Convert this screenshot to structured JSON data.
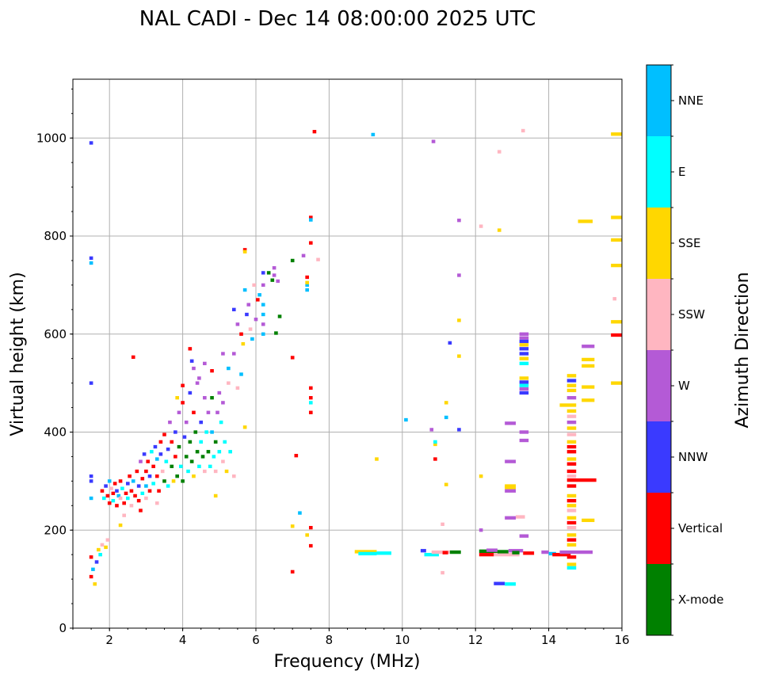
{
  "chart_data": {
    "type": "scatter",
    "title": "NAL CADI - Dec 14 08:00:00 2025 UTC",
    "xlabel": "Frequency (MHz)",
    "ylabel": "Virtual height (km)",
    "xlim": [
      1,
      16
    ],
    "ylim": [
      0,
      1120
    ],
    "xticks": [
      2,
      4,
      6,
      8,
      10,
      12,
      14,
      16
    ],
    "yticks": [
      0,
      200,
      400,
      600,
      800,
      1000
    ],
    "grid": true,
    "colorbar": {
      "label": "Azimuth Direction",
      "categories": [
        "X-mode",
        "Vertical",
        "NNW",
        "W",
        "SSW",
        "SSE",
        "E",
        "NNE"
      ],
      "colors": [
        "#008000",
        "#ff0000",
        "#3a3aff",
        "#b45ad6",
        "#ffb6c1",
        "#ffd700",
        "#00ffff",
        "#00bfff"
      ]
    },
    "points_note": "[frequency MHz, virtual height km, category index]",
    "points": [
      [
        1.5,
        990,
        2
      ],
      [
        1.5,
        755,
        2
      ],
      [
        1.5,
        745,
        7
      ],
      [
        1.5,
        500,
        2
      ],
      [
        1.5,
        310,
        2
      ],
      [
        1.5,
        300,
        2
      ],
      [
        1.5,
        265,
        7
      ],
      [
        1.5,
        145,
        1
      ],
      [
        1.5,
        105,
        1
      ],
      [
        1.55,
        120,
        7
      ],
      [
        1.6,
        90,
        5
      ],
      [
        1.7,
        160,
        5
      ],
      [
        1.8,
        170,
        4
      ],
      [
        1.9,
        165,
        5
      ],
      [
        1.95,
        180,
        4
      ],
      [
        1.75,
        150,
        6
      ],
      [
        1.65,
        135,
        2
      ],
      [
        7.6,
        1013,
        1
      ],
      [
        9.2,
        1007,
        7
      ],
      [
        10.85,
        993,
        3
      ],
      [
        12.65,
        972,
        4
      ],
      [
        13.3,
        1015,
        4
      ],
      [
        7.5,
        838,
        1
      ],
      [
        7.5,
        833,
        7
      ],
      [
        11.55,
        832,
        3
      ],
      [
        12.15,
        820,
        4
      ],
      [
        12.65,
        812,
        5
      ],
      [
        15.8,
        672,
        4
      ],
      [
        11.55,
        720,
        3
      ],
      [
        11.55,
        628,
        5
      ],
      [
        11.55,
        555,
        5
      ],
      [
        11.3,
        582,
        2
      ],
      [
        11.2,
        460,
        5
      ],
      [
        11.2,
        430,
        7
      ],
      [
        11.55,
        405,
        2
      ],
      [
        10.1,
        425,
        7
      ],
      [
        10.8,
        405,
        3
      ],
      [
        10.9,
        375,
        5
      ],
      [
        10.9,
        380,
        6
      ],
      [
        10.9,
        345,
        1
      ],
      [
        11.2,
        293,
        5
      ],
      [
        9.3,
        345,
        5
      ],
      [
        12.15,
        310,
        5
      ],
      [
        12.15,
        200,
        3
      ],
      [
        11.1,
        212,
        4
      ],
      [
        11.1,
        113,
        4
      ],
      [
        7.0,
        552,
        1
      ],
      [
        7.0,
        115,
        1
      ],
      [
        7.1,
        352,
        1
      ],
      [
        7.2,
        235,
        7
      ],
      [
        7.0,
        208,
        5
      ],
      [
        7.5,
        205,
        1
      ],
      [
        7.5,
        168,
        1
      ],
      [
        7.4,
        190,
        5
      ],
      [
        7.5,
        490,
        1
      ],
      [
        7.5,
        470,
        1
      ],
      [
        7.5,
        460,
        6
      ],
      [
        7.5,
        440,
        1
      ],
      [
        7.4,
        700,
        7
      ],
      [
        7.4,
        690,
        7
      ],
      [
        7.5,
        786,
        1
      ],
      [
        7.3,
        760,
        3
      ],
      [
        7.0,
        750,
        0
      ],
      [
        7.7,
        752,
        4
      ],
      [
        7.4,
        716,
        1
      ],
      [
        7.4,
        705,
        5
      ],
      [
        1.8,
        280,
        1
      ],
      [
        1.85,
        265,
        6
      ],
      [
        1.9,
        290,
        2
      ],
      [
        1.95,
        270,
        1
      ],
      [
        2.0,
        300,
        7
      ],
      [
        2.0,
        255,
        1
      ],
      [
        2.05,
        285,
        4
      ],
      [
        2.1,
        275,
        1
      ],
      [
        2.1,
        260,
        6
      ],
      [
        2.15,
        295,
        1
      ],
      [
        2.2,
        280,
        2
      ],
      [
        2.2,
        250,
        1
      ],
      [
        2.25,
        270,
        7
      ],
      [
        2.3,
        300,
        1
      ],
      [
        2.3,
        265,
        4
      ],
      [
        2.35,
        285,
        6
      ],
      [
        2.4,
        255,
        1
      ],
      [
        2.45,
        275,
        1
      ],
      [
        2.5,
        295,
        2
      ],
      [
        2.5,
        265,
        6
      ],
      [
        2.55,
        310,
        1
      ],
      [
        2.6,
        280,
        1
      ],
      [
        2.6,
        250,
        4
      ],
      [
        2.65,
        300,
        7
      ],
      [
        2.7,
        270,
        1
      ],
      [
        2.75,
        320,
        1
      ],
      [
        2.8,
        290,
        2
      ],
      [
        2.8,
        260,
        1
      ],
      [
        2.85,
        340,
        3
      ],
      [
        2.9,
        305,
        1
      ],
      [
        2.9,
        275,
        6
      ],
      [
        2.95,
        355,
        2
      ],
      [
        3.0,
        320,
        1
      ],
      [
        3.0,
        290,
        7
      ],
      [
        3.0,
        265,
        4
      ],
      [
        3.05,
        340,
        1
      ],
      [
        3.1,
        310,
        2
      ],
      [
        3.1,
        280,
        1
      ],
      [
        3.15,
        360,
        6
      ],
      [
        3.2,
        330,
        1
      ],
      [
        3.2,
        295,
        6
      ],
      [
        3.25,
        370,
        2
      ],
      [
        3.3,
        345,
        7
      ],
      [
        3.3,
        310,
        1
      ],
      [
        3.35,
        280,
        1
      ],
      [
        3.4,
        380,
        1
      ],
      [
        3.4,
        355,
        2
      ],
      [
        3.45,
        320,
        4
      ],
      [
        3.5,
        300,
        0
      ],
      [
        3.5,
        395,
        1
      ],
      [
        3.55,
        340,
        6
      ],
      [
        3.6,
        365,
        2
      ],
      [
        3.6,
        290,
        6
      ],
      [
        3.65,
        420,
        3
      ],
      [
        3.7,
        330,
        0
      ],
      [
        3.7,
        380,
        1
      ],
      [
        3.75,
        300,
        5
      ],
      [
        3.8,
        350,
        1
      ],
      [
        3.8,
        400,
        2
      ],
      [
        3.85,
        310,
        0
      ],
      [
        3.9,
        440,
        3
      ],
      [
        3.9,
        370,
        0
      ],
      [
        3.95,
        330,
        6
      ],
      [
        4.0,
        460,
        1
      ],
      [
        4.0,
        300,
        0
      ],
      [
        4.05,
        390,
        2
      ],
      [
        4.1,
        350,
        0
      ],
      [
        4.1,
        420,
        3
      ],
      [
        4.15,
        320,
        6
      ],
      [
        4.2,
        480,
        2
      ],
      [
        4.2,
        380,
        0
      ],
      [
        4.25,
        340,
        0
      ],
      [
        4.3,
        440,
        1
      ],
      [
        4.3,
        310,
        5
      ],
      [
        4.35,
        400,
        0
      ],
      [
        4.4,
        360,
        0
      ],
      [
        4.4,
        500,
        3
      ],
      [
        4.45,
        330,
        6
      ],
      [
        4.5,
        420,
        2
      ],
      [
        4.5,
        380,
        6
      ],
      [
        4.55,
        350,
        0
      ],
      [
        4.6,
        470,
        3
      ],
      [
        4.6,
        320,
        4
      ],
      [
        4.65,
        400,
        6
      ],
      [
        4.7,
        440,
        3
      ],
      [
        4.7,
        360,
        0
      ],
      [
        4.75,
        330,
        6
      ],
      [
        4.8,
        470,
        0
      ],
      [
        4.8,
        400,
        7
      ],
      [
        4.85,
        350,
        6
      ],
      [
        4.9,
        380,
        0
      ],
      [
        4.9,
        320,
        4
      ],
      [
        4.95,
        440,
        3
      ],
      [
        5.0,
        360,
        6
      ],
      [
        5.0,
        480,
        3
      ],
      [
        5.05,
        420,
        6
      ],
      [
        5.1,
        340,
        4
      ],
      [
        5.1,
        460,
        3
      ],
      [
        5.15,
        380,
        6
      ],
      [
        5.2,
        320,
        5
      ],
      [
        5.25,
        500,
        4
      ],
      [
        5.3,
        360,
        6
      ],
      [
        5.4,
        310,
        4
      ],
      [
        2.65,
        553,
        1
      ],
      [
        4.2,
        570,
        1
      ],
      [
        4.25,
        545,
        2
      ],
      [
        4.3,
        530,
        3
      ],
      [
        4.0,
        495,
        1
      ],
      [
        3.85,
        470,
        5
      ],
      [
        4.45,
        510,
        3
      ],
      [
        4.6,
        540,
        3
      ],
      [
        4.8,
        525,
        1
      ],
      [
        5.1,
        560,
        3
      ],
      [
        5.25,
        530,
        7
      ],
      [
        5.5,
        490,
        4
      ],
      [
        5.7,
        410,
        5
      ],
      [
        4.9,
        270,
        5
      ],
      [
        2.3,
        210,
        5
      ],
      [
        2.4,
        230,
        4
      ],
      [
        2.85,
        240,
        1
      ],
      [
        3.3,
        255,
        4
      ],
      [
        5.4,
        650,
        2
      ],
      [
        5.5,
        620,
        3
      ],
      [
        5.6,
        600,
        1
      ],
      [
        5.7,
        690,
        7
      ],
      [
        5.75,
        640,
        2
      ],
      [
        5.8,
        660,
        3
      ],
      [
        5.85,
        610,
        4
      ],
      [
        5.9,
        590,
        7
      ],
      [
        5.95,
        700,
        4
      ],
      [
        6.0,
        630,
        3
      ],
      [
        6.05,
        670,
        1
      ],
      [
        6.1,
        680,
        7
      ],
      [
        6.2,
        700,
        3
      ],
      [
        6.2,
        660,
        7
      ],
      [
        6.2,
        640,
        7
      ],
      [
        6.2,
        620,
        3
      ],
      [
        6.2,
        600,
        7
      ],
      [
        6.2,
        725,
        2
      ],
      [
        6.35,
        725,
        0
      ],
      [
        6.45,
        710,
        0
      ],
      [
        6.5,
        720,
        3
      ],
      [
        6.5,
        735,
        3
      ],
      [
        6.6,
        708,
        3
      ],
      [
        6.55,
        602,
        0
      ],
      [
        6.65,
        636,
        0
      ],
      [
        5.7,
        772,
        1
      ],
      [
        5.7,
        768,
        5
      ],
      [
        5.4,
        560,
        3
      ],
      [
        5.6,
        518,
        7
      ],
      [
        5.65,
        580,
        5
      ]
    ],
    "bars_note": "[freq start MHz, freq end MHz, virtual height km, category index]",
    "bars": [
      [
        15.7,
        16,
        1008,
        5
      ],
      [
        15.7,
        16,
        838,
        5
      ],
      [
        15.7,
        16,
        792,
        5
      ],
      [
        15.7,
        16,
        740,
        5
      ],
      [
        15.7,
        16,
        625,
        5
      ],
      [
        15.7,
        16,
        598,
        1
      ],
      [
        15.7,
        16,
        500,
        5
      ],
      [
        14.8,
        15.2,
        830,
        5
      ],
      [
        13.2,
        13.45,
        600,
        3
      ],
      [
        13.2,
        13.45,
        592,
        3
      ],
      [
        13.2,
        13.45,
        585,
        2
      ],
      [
        13.2,
        13.45,
        578,
        5
      ],
      [
        13.2,
        13.45,
        570,
        2
      ],
      [
        13.2,
        13.45,
        560,
        2
      ],
      [
        13.2,
        13.45,
        550,
        5
      ],
      [
        13.2,
        13.45,
        540,
        6
      ],
      [
        13.2,
        13.45,
        510,
        5
      ],
      [
        13.2,
        13.45,
        502,
        2
      ],
      [
        13.2,
        13.45,
        495,
        6
      ],
      [
        13.2,
        13.45,
        488,
        3
      ],
      [
        13.2,
        13.45,
        480,
        2
      ],
      [
        13.2,
        13.45,
        400,
        3
      ],
      [
        13.2,
        13.45,
        383,
        3
      ],
      [
        14.5,
        14.75,
        515,
        5
      ],
      [
        14.5,
        14.75,
        505,
        2
      ],
      [
        14.5,
        14.75,
        495,
        5
      ],
      [
        14.5,
        14.75,
        485,
        5
      ],
      [
        14.5,
        14.75,
        470,
        3
      ],
      [
        14.3,
        14.75,
        455,
        5
      ],
      [
        14.5,
        14.75,
        443,
        5
      ],
      [
        14.5,
        14.75,
        432,
        4
      ],
      [
        14.5,
        14.75,
        420,
        3
      ],
      [
        14.5,
        14.75,
        408,
        5
      ],
      [
        14.5,
        14.75,
        395,
        4
      ],
      [
        14.5,
        14.75,
        380,
        5
      ],
      [
        14.5,
        14.75,
        370,
        1
      ],
      [
        14.5,
        14.75,
        360,
        1
      ],
      [
        14.5,
        14.75,
        345,
        5
      ],
      [
        14.5,
        14.75,
        335,
        1
      ],
      [
        14.5,
        14.75,
        320,
        1
      ],
      [
        14.5,
        14.75,
        310,
        4
      ],
      [
        14.5,
        15.3,
        302,
        1
      ],
      [
        14.5,
        14.75,
        290,
        1
      ],
      [
        14.5,
        14.75,
        270,
        5
      ],
      [
        14.5,
        14.75,
        260,
        1
      ],
      [
        14.5,
        14.75,
        250,
        5
      ],
      [
        14.5,
        14.75,
        240,
        4
      ],
      [
        14.5,
        14.75,
        225,
        5
      ],
      [
        14.5,
        14.75,
        215,
        1
      ],
      [
        14.5,
        14.75,
        205,
        4
      ],
      [
        14.5,
        14.75,
        190,
        5
      ],
      [
        14.5,
        14.75,
        180,
        1
      ],
      [
        14.5,
        14.75,
        170,
        5
      ],
      [
        14.5,
        14.75,
        145,
        1
      ],
      [
        14.5,
        14.75,
        130,
        5
      ],
      [
        14.5,
        14.75,
        123,
        6
      ],
      [
        14.9,
        15.25,
        575,
        3
      ],
      [
        14.9,
        15.25,
        548,
        5
      ],
      [
        14.9,
        15.25,
        535,
        5
      ],
      [
        14.9,
        15.25,
        492,
        5
      ],
      [
        14.9,
        15.25,
        465,
        5
      ],
      [
        14.9,
        15.25,
        220,
        5
      ],
      [
        12.8,
        13.1,
        418,
        3
      ],
      [
        12.8,
        13.1,
        340,
        3
      ],
      [
        12.8,
        13.1,
        290,
        5
      ],
      [
        12.8,
        13.1,
        287,
        5
      ],
      [
        12.8,
        13.1,
        280,
        3
      ],
      [
        12.8,
        13.1,
        225,
        3
      ],
      [
        13.1,
        13.35,
        227,
        4
      ],
      [
        13.2,
        13.45,
        188,
        3
      ],
      [
        8.7,
        9.3,
        156,
        5
      ],
      [
        8.8,
        9.3,
        152,
        6
      ],
      [
        9.3,
        9.7,
        153,
        6
      ],
      [
        10.5,
        10.65,
        158,
        2
      ],
      [
        10.6,
        11.0,
        150,
        6
      ],
      [
        10.8,
        11.3,
        155,
        4
      ],
      [
        11.1,
        11.25,
        154,
        1
      ],
      [
        11.3,
        11.6,
        155,
        0
      ],
      [
        12.1,
        12.5,
        150,
        1
      ],
      [
        12.1,
        12.6,
        157,
        0
      ],
      [
        12.3,
        12.6,
        159,
        3
      ],
      [
        12.5,
        13.2,
        150,
        4
      ],
      [
        12.6,
        12.9,
        156,
        0
      ],
      [
        12.9,
        13.3,
        158,
        3
      ],
      [
        13.0,
        13.2,
        154,
        0
      ],
      [
        13.3,
        13.6,
        153,
        1
      ],
      [
        13.8,
        14.0,
        155,
        3
      ],
      [
        14.0,
        14.2,
        152,
        7
      ],
      [
        14.1,
        14.6,
        150,
        1
      ],
      [
        14.3,
        15.2,
        155,
        3
      ],
      [
        12.5,
        12.8,
        91,
        2
      ],
      [
        12.8,
        13.1,
        90,
        6
      ]
    ]
  }
}
